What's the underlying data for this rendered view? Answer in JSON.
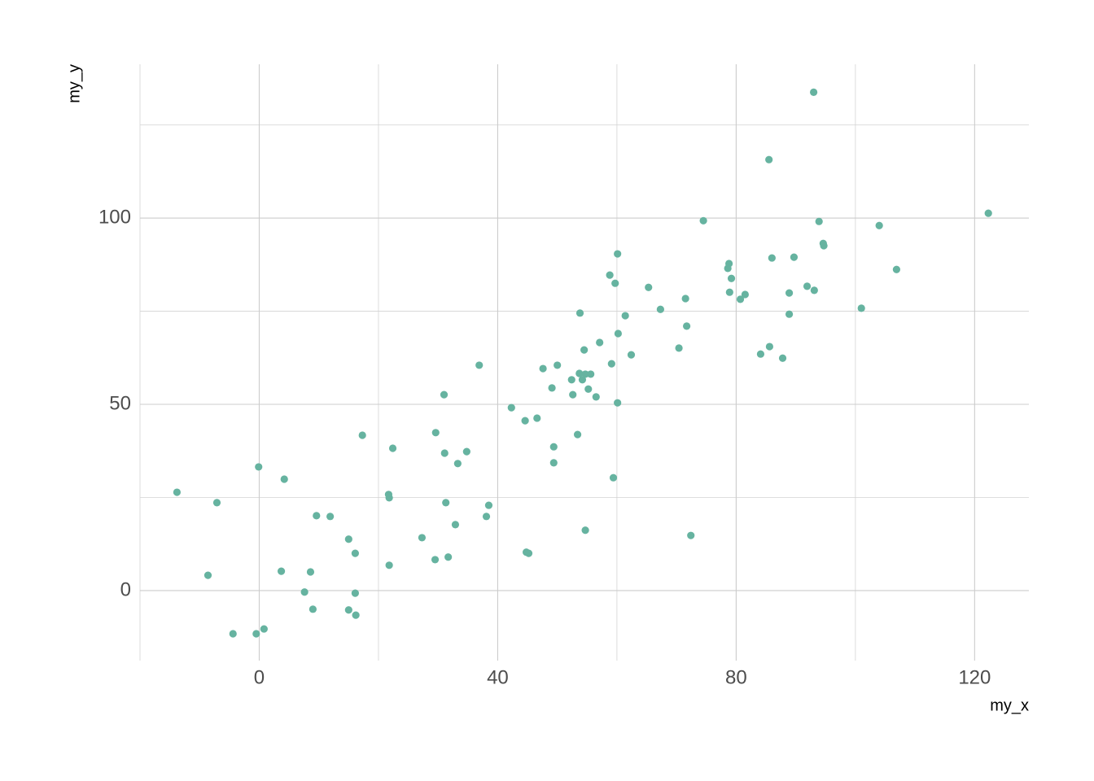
{
  "chart_data": {
    "type": "scatter",
    "x_label": "my_x",
    "y_label": "my_y",
    "color": "#66b3a0",
    "xlim": [
      -20,
      129.1
    ],
    "ylim": [
      -18.8,
      141.3
    ],
    "xticks": [
      0,
      40,
      80,
      120
    ],
    "yticks": [
      0,
      50,
      100
    ],
    "xminor": [
      -20,
      20,
      60,
      100
    ],
    "yminor": [
      25,
      75,
      125
    ],
    "grid": true,
    "x": [
      -13.8,
      -8.6,
      -7.1,
      -4.4,
      -0.5,
      -0.1,
      0.8,
      3.7,
      4.2,
      7.6,
      8.6,
      9.0,
      9.6,
      11.9,
      15.0,
      15.0,
      16.1,
      16.1,
      16.2,
      17.3,
      21.7,
      21.8,
      21.8,
      22.4,
      27.3,
      29.5,
      29.6,
      31.0,
      31.1,
      31.3,
      31.7,
      32.9,
      33.3,
      34.8,
      36.9,
      38.1,
      38.5,
      42.3,
      44.6,
      44.8,
      45.2,
      46.6,
      47.6,
      49.1,
      49.4,
      49.4,
      50.0,
      52.4,
      52.6,
      53.4,
      53.7,
      53.8,
      54.2,
      54.5,
      54.7,
      54.7,
      55.2,
      55.6,
      56.5,
      57.1,
      58.8,
      59.1,
      59.4,
      59.7,
      60.1,
      60.1,
      60.2,
      61.4,
      62.4,
      65.3,
      67.3,
      70.4,
      71.5,
      71.7,
      72.4,
      74.5,
      78.6,
      78.8,
      78.9,
      79.2,
      80.7,
      81.5,
      84.1,
      85.5,
      85.6,
      86.0,
      87.8,
      88.9,
      88.9,
      89.7,
      91.9,
      93.0,
      93.1,
      93.9,
      94.6,
      94.7,
      101.0,
      104.0,
      106.9,
      122.3
    ],
    "values": [
      26.4,
      4.1,
      23.6,
      -11.6,
      -11.6,
      33.2,
      -10.3,
      5.2,
      29.9,
      -0.4,
      5.0,
      -5.0,
      20.1,
      19.9,
      13.8,
      -5.2,
      10.0,
      -0.7,
      -6.6,
      41.7,
      25.8,
      24.9,
      6.8,
      38.2,
      14.2,
      8.3,
      42.4,
      52.6,
      36.9,
      23.6,
      9.0,
      17.7,
      34.1,
      37.3,
      60.5,
      19.9,
      22.9,
      49.1,
      45.6,
      10.3,
      10.0,
      46.3,
      59.6,
      54.4,
      38.6,
      34.3,
      60.5,
      56.6,
      52.6,
      41.9,
      58.3,
      74.5,
      56.6,
      64.6,
      58.1,
      16.2,
      54.1,
      58.1,
      52.0,
      66.6,
      84.7,
      60.9,
      30.3,
      82.5,
      50.4,
      90.4,
      69.0,
      73.8,
      63.3,
      81.4,
      75.5,
      65.1,
      78.4,
      71.0,
      14.8,
      99.3,
      86.5,
      87.8,
      80.1,
      83.8,
      78.2,
      79.5,
      63.5,
      115.7,
      65.5,
      89.3,
      62.4,
      79.9,
      74.2,
      89.5,
      81.7,
      133.8,
      80.6,
      99.1,
      93.2,
      92.6,
      75.8,
      98.0,
      86.2,
      101.3
    ]
  }
}
